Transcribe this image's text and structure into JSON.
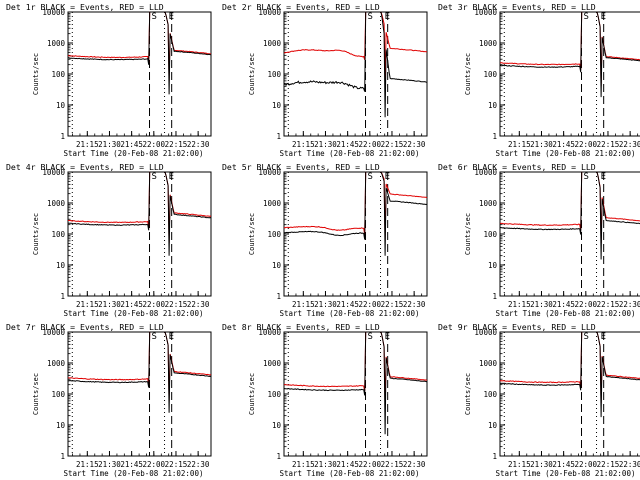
{
  "colors": {
    "events": "#000000",
    "lld": "#e00000",
    "frame": "#000000"
  },
  "chart_data": [
    {
      "type": "line",
      "title": "Det 1r BLACK = Events, RED = LLD",
      "xlabel": "Start Time (20-Feb-08 21:02:00)",
      "ylabel": "Counts/sec",
      "ylog": true,
      "ylim": [
        1,
        10000
      ],
      "yticks": [
        "1",
        "10",
        "100",
        "1000",
        "10000"
      ],
      "xticks": [
        "21:15",
        "21:30",
        "21:45",
        "22:00",
        "22:15",
        "22:30"
      ],
      "markers": [
        "S",
        "E"
      ],
      "events_base": 330,
      "lld_base": 390,
      "after_events": 420,
      "after_lld": 450,
      "dip_events": 22,
      "dip_lld": 60,
      "wave": "flat"
    },
    {
      "type": "line",
      "title": "Det 2r BLACK = Events, RED = LLD",
      "xlabel": "Start Time (20-Feb-08 21:02:00)",
      "ylabel": "Counts/sec",
      "ylog": true,
      "ylim": [
        1,
        10000
      ],
      "yticks": [
        "1",
        "10",
        "100",
        "1000",
        "10000"
      ],
      "xticks": [
        "21:15",
        "21:30",
        "21:45",
        "22:00",
        "22:15",
        "22:30"
      ],
      "markers": [
        "S",
        "E"
      ],
      "events_base": 45,
      "lld_base": 480,
      "after_events": 55,
      "after_lld": 520,
      "dip_events": 4,
      "dip_lld": 60,
      "wave": "bump"
    },
    {
      "type": "line",
      "title": "Det 3r BLACK = Events, RED = LLD",
      "xlabel": "Start Time (20-Feb-08 21:02:00)",
      "ylabel": "Counts/sec",
      "ylog": true,
      "ylim": [
        1,
        10000
      ],
      "yticks": [
        "1",
        "10",
        "100",
        "1000",
        "10000"
      ],
      "xticks": [
        "21:15",
        "21:30",
        "21:45",
        "22:00",
        "22:15",
        "22:30"
      ],
      "markers": [
        "S",
        "E"
      ],
      "events_base": 190,
      "lld_base": 230,
      "after_events": 260,
      "after_lld": 280,
      "dip_events": 18,
      "dip_lld": 40,
      "wave": "flat"
    },
    {
      "type": "line",
      "title": "Det 4r BLACK = Events, RED = LLD",
      "xlabel": "Start Time (20-Feb-08 21:02:00)",
      "ylabel": "Counts/sec",
      "ylog": true,
      "ylim": [
        1,
        10000
      ],
      "yticks": [
        "1",
        "10",
        "100",
        "1000",
        "10000"
      ],
      "xticks": [
        "21:15",
        "21:30",
        "21:45",
        "22:00",
        "22:15",
        "22:30"
      ],
      "markers": [
        "S",
        "E"
      ],
      "events_base": 220,
      "lld_base": 270,
      "after_events": 330,
      "after_lld": 370,
      "dip_events": 20,
      "dip_lld": 50,
      "wave": "flat"
    },
    {
      "type": "line",
      "title": "Det 5r BLACK = Events, RED = LLD",
      "xlabel": "Start Time (20-Feb-08 21:02:00)",
      "ylabel": "Counts/sec",
      "ylog": true,
      "ylim": [
        1,
        10000
      ],
      "yticks": [
        "1",
        "10",
        "100",
        "1000",
        "10000"
      ],
      "xticks": [
        "21:15",
        "21:30",
        "21:45",
        "22:00",
        "22:15",
        "22:30"
      ],
      "markers": [
        "S",
        "E"
      ],
      "events_base": 110,
      "lld_base": 160,
      "after_events": 900,
      "after_lld": 1500,
      "dip_events": 20,
      "dip_lld": 60,
      "wave": "dip"
    },
    {
      "type": "line",
      "title": "Det 6r BLACK = Events, RED = LLD",
      "xlabel": "Start Time (20-Feb-08 21:02:00)",
      "ylabel": "Counts/sec",
      "ylog": true,
      "ylim": [
        1,
        10000
      ],
      "yticks": [
        "1",
        "10",
        "100",
        "1000",
        "10000"
      ],
      "xticks": [
        "21:15",
        "21:30",
        "21:45",
        "22:00",
        "22:15",
        "22:30"
      ],
      "markers": [
        "S",
        "E"
      ],
      "events_base": 160,
      "lld_base": 220,
      "after_events": 210,
      "after_lld": 260,
      "dip_events": 15,
      "dip_lld": 50,
      "wave": "flat"
    },
    {
      "type": "line",
      "title": "Det 7r BLACK = Events, RED = LLD",
      "xlabel": "Start Time (20-Feb-08 21:02:00)",
      "ylabel": "Counts/sec",
      "ylog": true,
      "ylim": [
        1,
        10000
      ],
      "yticks": [
        "1",
        "10",
        "100",
        "1000",
        "10000"
      ],
      "xticks": [
        "21:15",
        "21:30",
        "21:45",
        "22:00",
        "22:15",
        "22:30"
      ],
      "markers": [
        "S",
        "E"
      ],
      "events_base": 270,
      "lld_base": 330,
      "after_events": 370,
      "after_lld": 410,
      "dip_events": 25,
      "dip_lld": 60,
      "wave": "flat"
    },
    {
      "type": "line",
      "title": "Det 8r BLACK = Events, RED = LLD",
      "xlabel": "Start Time (20-Feb-08 21:02:00)",
      "ylabel": "Counts/sec",
      "ylog": true,
      "ylim": [
        1,
        10000
      ],
      "yticks": [
        "1",
        "10",
        "100",
        "1000",
        "10000"
      ],
      "xticks": [
        "21:15",
        "21:30",
        "21:45",
        "22:00",
        "22:15",
        "22:30"
      ],
      "markers": [
        "S",
        "E"
      ],
      "events_base": 150,
      "lld_base": 200,
      "after_events": 250,
      "after_lld": 280,
      "dip_events": 5,
      "dip_lld": 40,
      "wave": "flat"
    },
    {
      "type": "line",
      "title": "Det 9r BLACK = Events, RED = LLD",
      "xlabel": "Start Time (20-Feb-08 21:02:00)",
      "ylabel": "Counts/sec",
      "ylog": true,
      "ylim": [
        1,
        10000
      ],
      "yticks": [
        "1",
        "10",
        "100",
        "1000",
        "10000"
      ],
      "xticks": [
        "21:15",
        "21:30",
        "21:45",
        "22:00",
        "22:15",
        "22:30"
      ],
      "markers": [
        "S",
        "E"
      ],
      "events_base": 220,
      "lld_base": 270,
      "after_events": 280,
      "after_lld": 310,
      "dip_events": 18,
      "dip_lld": 50,
      "wave": "flat"
    }
  ]
}
